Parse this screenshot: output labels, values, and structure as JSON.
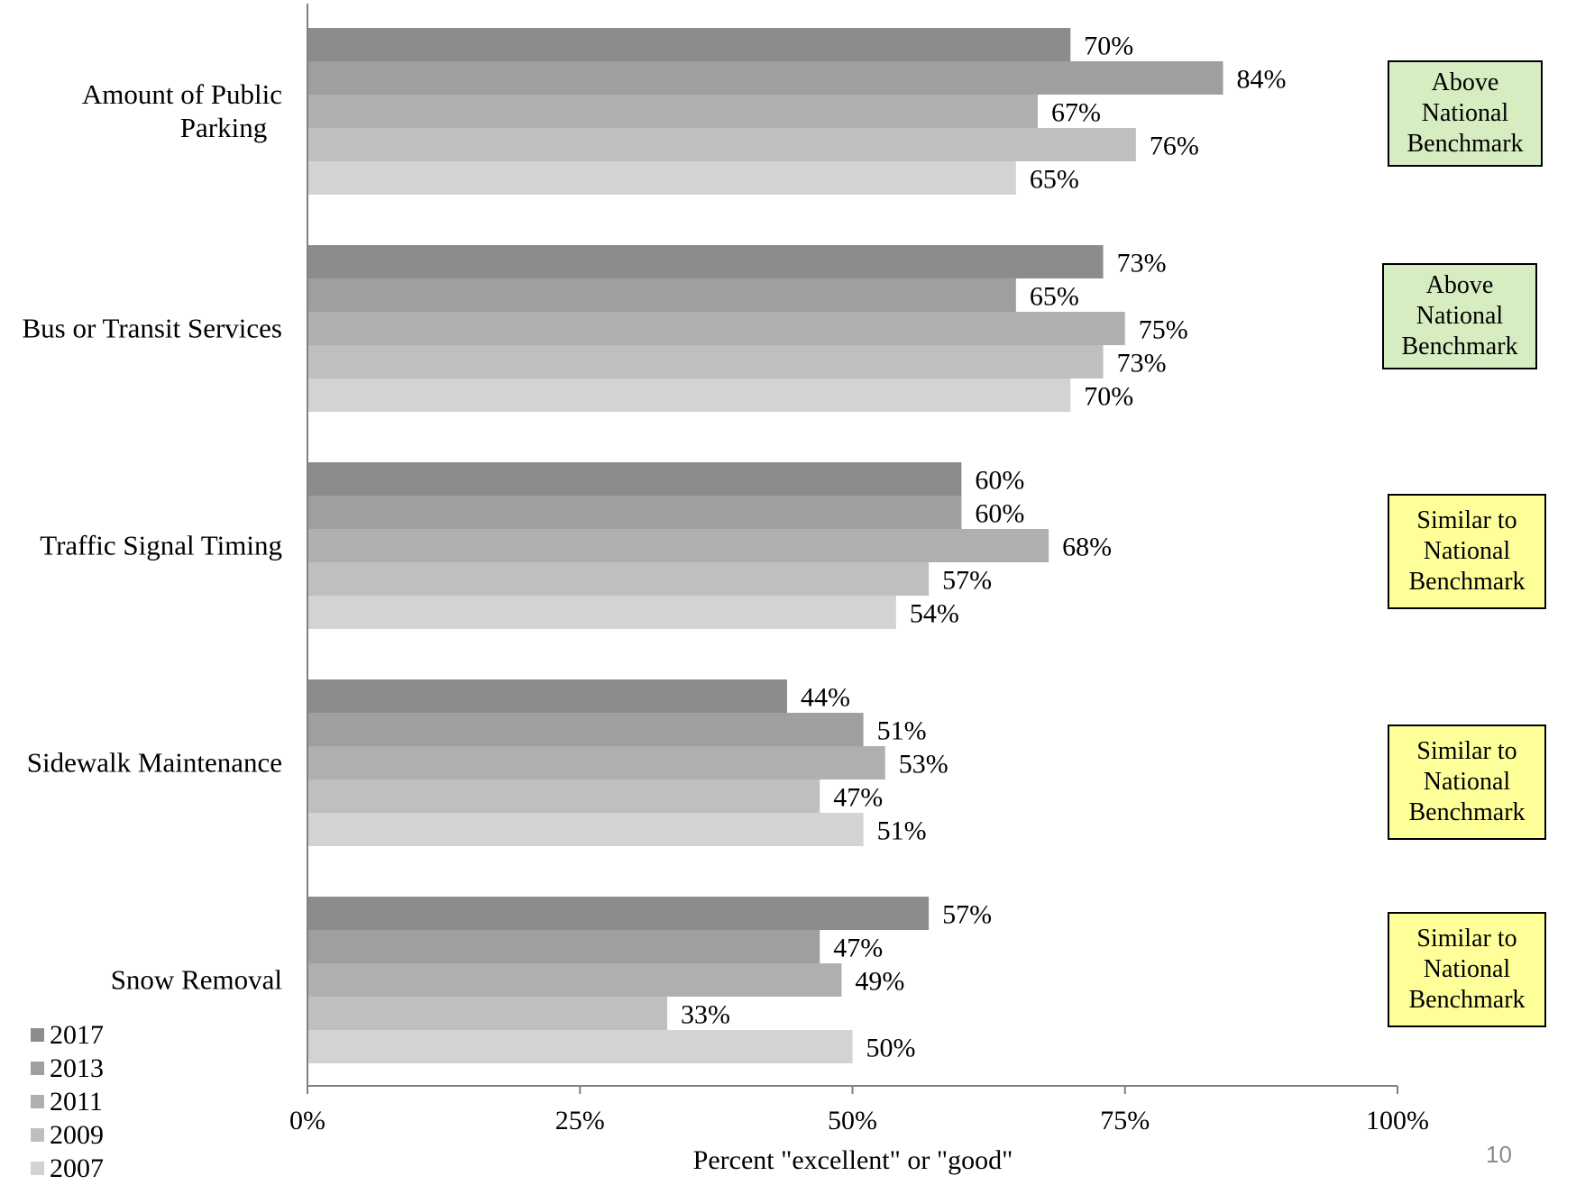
{
  "chart_data": {
    "type": "bar",
    "orientation": "horizontal",
    "title": "",
    "xlabel": "Percent \"excellent\" or \"good\"",
    "ylabel": "",
    "xlim": [
      0,
      100
    ],
    "x_ticks": [
      "0%",
      "25%",
      "50%",
      "75%",
      "100%"
    ],
    "categories": [
      "Amount of Public\nParking",
      "Bus or Transit Services",
      "Traffic Signal Timing",
      "Sidewalk Maintenance",
      "Snow Removal"
    ],
    "series": [
      {
        "name": "2017",
        "color": "#8c8c8c",
        "values": [
          70,
          73,
          60,
          44,
          57
        ]
      },
      {
        "name": "2013",
        "color": "#9f9f9f",
        "values": [
          84,
          65,
          60,
          51,
          47
        ]
      },
      {
        "name": "2011",
        "color": "#afafaf",
        "values": [
          67,
          75,
          68,
          53,
          49
        ]
      },
      {
        "name": "2009",
        "color": "#bfbfbf",
        "values": [
          76,
          73,
          57,
          47,
          33
        ]
      },
      {
        "name": "2007",
        "color": "#d3d3d3",
        "values": [
          65,
          70,
          54,
          51,
          50
        ]
      }
    ],
    "value_labels": [
      [
        "70%",
        "84%",
        "67%",
        "76%",
        "65%"
      ],
      [
        "73%",
        "65%",
        "75%",
        "73%",
        "70%"
      ],
      [
        "60%",
        "60%",
        "68%",
        "57%",
        "54%"
      ],
      [
        "44%",
        "51%",
        "53%",
        "47%",
        "51%"
      ],
      [
        "57%",
        "47%",
        "49%",
        "33%",
        "50%"
      ]
    ],
    "legend_position": "bottom-left",
    "grid": false
  },
  "benchmarks": [
    {
      "text": "Above\nNational\nBenchmark",
      "color": "#d5edc1"
    },
    {
      "text": "Above\nNational\nBenchmark",
      "color": "#d5edc1"
    },
    {
      "text": "Similar to\nNational\nBenchmark",
      "color": "#ffff99"
    },
    {
      "text": "Similar to\nNational\nBenchmark",
      "color": "#ffff99"
    },
    {
      "text": "Similar to\nNational\nBenchmark",
      "color": "#ffff99"
    }
  ],
  "page_number": "10"
}
